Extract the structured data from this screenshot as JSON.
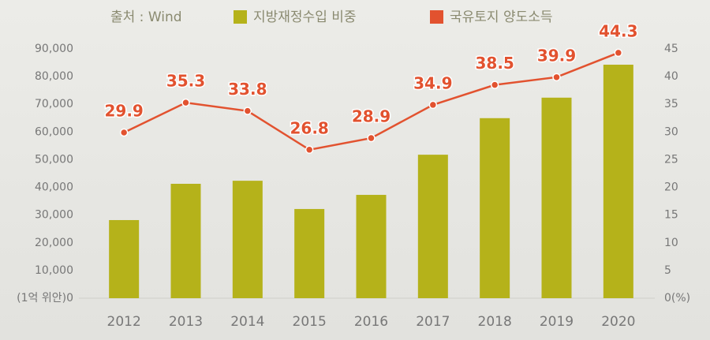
{
  "chart_data": {
    "type": "combo",
    "source": "출처 : Wind",
    "categories": [
      "2012",
      "2013",
      "2014",
      "2015",
      "2016",
      "2017",
      "2018",
      "2019",
      "2020"
    ],
    "series": [
      {
        "name": "지방재정수입 비중",
        "type": "bar",
        "color": "#b5b21a",
        "values": [
          28200,
          41300,
          42400,
          32200,
          37300,
          51800,
          65000,
          72400,
          84300
        ]
      },
      {
        "name": "국유토지 양도소득",
        "type": "line",
        "axis": "y2",
        "color": "#e2522f",
        "values": [
          29.9,
          35.3,
          33.8,
          26.8,
          28.9,
          34.9,
          38.5,
          39.9,
          44.3
        ]
      }
    ],
    "ylim": [
      0,
      90000
    ],
    "yticks": [
      {
        "value": 0,
        "label": "(1억 위안)0"
      },
      {
        "value": 10000,
        "label": "10,000"
      },
      {
        "value": 20000,
        "label": "20,000"
      },
      {
        "value": 30000,
        "label": "30,000"
      },
      {
        "value": 40000,
        "label": "40,000"
      },
      {
        "value": 50000,
        "label": "50,000"
      },
      {
        "value": 60000,
        "label": "60,000"
      },
      {
        "value": 70000,
        "label": "70,000"
      },
      {
        "value": 80000,
        "label": "80,000"
      },
      {
        "value": 90000,
        "label": "90,000"
      }
    ],
    "y2lim": [
      0,
      45
    ],
    "y2ticks": [
      {
        "value": 0,
        "label": "0(%)"
      },
      5,
      10,
      15,
      20,
      25,
      30,
      35,
      40,
      45
    ]
  }
}
